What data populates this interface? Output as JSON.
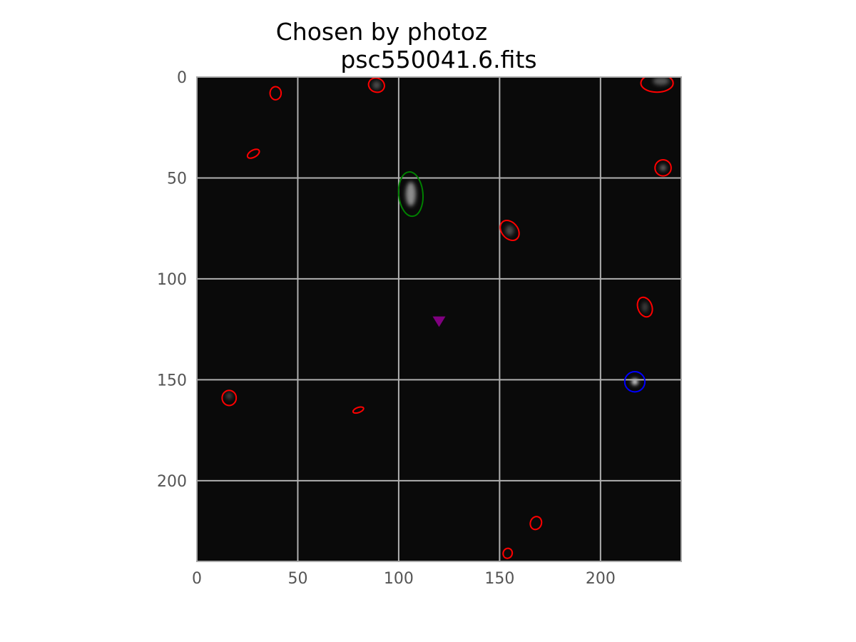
{
  "chart_data": {
    "type": "scatter",
    "title_lines": [
      "Chosen by photoz",
      "psc550041.6.fits"
    ],
    "xlabel": "",
    "ylabel": "",
    "xlim": [
      0,
      240
    ],
    "ylim": [
      240,
      0
    ],
    "y_axis_inverted": true,
    "grid": true,
    "x_ticks": [
      0,
      50,
      100,
      150,
      200
    ],
    "y_ticks": [
      0,
      50,
      100,
      150,
      200
    ],
    "image": {
      "background": "#0a0a0a",
      "sources": [
        {
          "x": 106,
          "y": 58,
          "sigma_x": 2.5,
          "sigma_y": 6,
          "brightness": 0.55
        },
        {
          "x": 217,
          "y": 151,
          "sigma_x": 1.5,
          "sigma_y": 1.5,
          "brightness": 1.0
        },
        {
          "x": 231,
          "y": 45,
          "sigma_x": 1.5,
          "sigma_y": 1.5,
          "brightness": 0.45
        },
        {
          "x": 155,
          "y": 76,
          "sigma_x": 2,
          "sigma_y": 2.5,
          "brightness": 0.3
        },
        {
          "x": 222,
          "y": 114,
          "sigma_x": 1.5,
          "sigma_y": 2.5,
          "brightness": 0.25
        },
        {
          "x": 16,
          "y": 158,
          "sigma_x": 1.5,
          "sigma_y": 1.5,
          "brightness": 0.3
        },
        {
          "x": 230,
          "y": 2,
          "sigma_x": 4,
          "sigma_y": 2,
          "brightness": 0.35
        },
        {
          "x": 89,
          "y": 4,
          "sigma_x": 2,
          "sigma_y": 2,
          "brightness": 0.3
        }
      ]
    },
    "series": [
      {
        "color": "#ff0000",
        "marker": "ellipse",
        "points": [
          {
            "x": 39,
            "y": 8,
            "w": 5.5,
            "h": 6.5,
            "angle": 0
          },
          {
            "x": 89,
            "y": 4,
            "w": 8,
            "h": 7,
            "angle": 20
          },
          {
            "x": 228,
            "y": 3,
            "w": 16,
            "h": 9,
            "angle": 0
          },
          {
            "x": 28,
            "y": 38,
            "w": 6.5,
            "h": 3.5,
            "angle": -30
          },
          {
            "x": 231,
            "y": 45,
            "w": 8,
            "h": 8,
            "angle": 0
          },
          {
            "x": 155,
            "y": 76,
            "w": 8,
            "h": 11,
            "angle": -40
          },
          {
            "x": 222,
            "y": 114,
            "w": 7,
            "h": 10,
            "angle": -20
          },
          {
            "x": 16,
            "y": 159,
            "w": 7,
            "h": 7.5,
            "angle": 0
          },
          {
            "x": 80,
            "y": 165,
            "w": 5.5,
            "h": 2.5,
            "angle": -20
          },
          {
            "x": 168,
            "y": 221,
            "w": 5.5,
            "h": 6.5,
            "angle": 20
          },
          {
            "x": 154,
            "y": 236,
            "w": 4.5,
            "h": 5,
            "angle": 20
          }
        ]
      },
      {
        "color": "#008000",
        "marker": "ellipse",
        "points": [
          {
            "x": 106,
            "y": 58,
            "w": 12,
            "h": 22,
            "angle": -5
          }
        ]
      },
      {
        "color": "#0000ff",
        "marker": "ellipse",
        "points": [
          {
            "x": 217,
            "y": 151,
            "w": 10,
            "h": 10,
            "angle": 0
          }
        ]
      },
      {
        "color": "#800080",
        "marker": "triangle-down",
        "points": [
          {
            "x": 120,
            "y": 121
          }
        ]
      }
    ]
  }
}
